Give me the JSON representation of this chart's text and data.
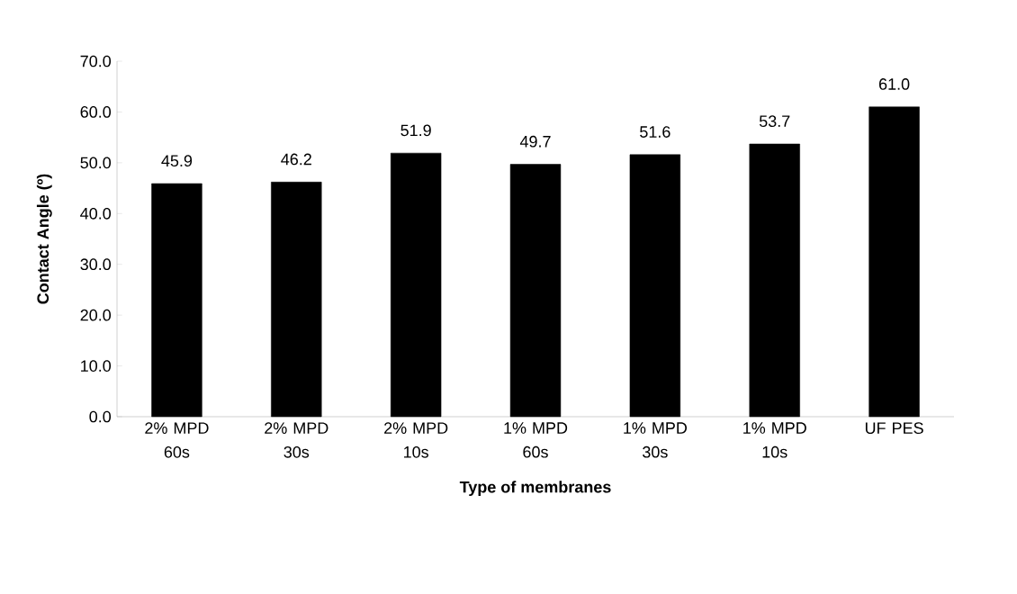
{
  "chart_data": {
    "type": "bar",
    "xlabel": "Type of membranes",
    "ylabel": "Contact Angle (º)",
    "categories": [
      "2% MPD 60s",
      "2% MPD 30s",
      "2% MPD 10s",
      "1% MPD 60s",
      "1% MPD 30s",
      "1% MPD 10s",
      "UF PES"
    ],
    "values": [
      45.9,
      46.2,
      51.9,
      49.7,
      51.6,
      53.7,
      61.0
    ],
    "value_labels": [
      "45.9",
      "46.2",
      "51.9",
      "49.7",
      "51.6",
      "53.7",
      "61.0"
    ],
    "color": "#000000",
    "ylim": [
      0,
      70
    ],
    "yticks": [
      {
        "value": 0,
        "label": "0.0"
      },
      {
        "value": 10,
        "label": "10.0"
      },
      {
        "value": 20,
        "label": "20.0"
      },
      {
        "value": 30,
        "label": "30.0"
      },
      {
        "value": 40,
        "label": "40.0"
      },
      {
        "value": 50,
        "label": "50.0"
      },
      {
        "value": 60,
        "label": "60.0"
      },
      {
        "value": 70,
        "label": "70.0"
      }
    ],
    "grid": false
  }
}
